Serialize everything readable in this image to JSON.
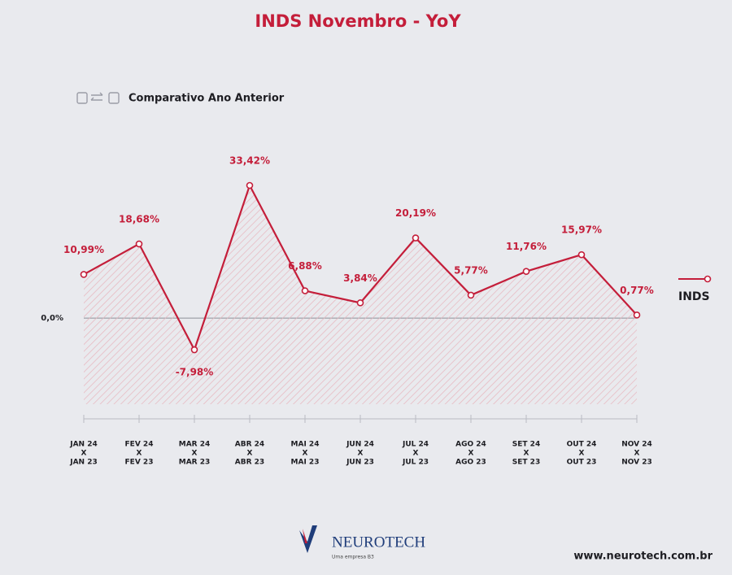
{
  "chart_data": {
    "type": "line",
    "title": "INDS Novembro - YoY",
    "subtitle": "Comparativo Ano Anterior",
    "categories": [
      [
        "JAN 24",
        "X",
        "JAN 23"
      ],
      [
        "FEV 24",
        "X",
        "FEV 23"
      ],
      [
        "MAR 24",
        "X",
        "MAR 23"
      ],
      [
        "ABR 24",
        "X",
        "ABR 23"
      ],
      [
        "MAI 24",
        "X",
        "MAI 23"
      ],
      [
        "JUN 24",
        "X",
        "JUN 23"
      ],
      [
        "JUL 24",
        "X",
        "JUL 23"
      ],
      [
        "AGO 24",
        "X",
        "AGO 23"
      ],
      [
        "SET 24",
        "X",
        "SET 23"
      ],
      [
        "OUT 24",
        "X",
        "OUT 23"
      ],
      [
        "NOV 24",
        "X",
        "NOV 23"
      ]
    ],
    "series": [
      {
        "name": "INDS",
        "color": "#c41e3a",
        "values": [
          10.99,
          18.68,
          -7.98,
          33.42,
          6.88,
          3.84,
          20.19,
          5.77,
          11.76,
          15.97,
          0.77
        ],
        "value_labels": [
          "10,99%",
          "18,68%",
          "-7,98%",
          "33,42%",
          "6,88%",
          "3,84%",
          "20,19%",
          "5,77%",
          "11,76%",
          "15,97%",
          "0,77%"
        ]
      }
    ],
    "ylim": [
      -21.7,
      49.4
    ],
    "yticks": [
      {
        "value": 0,
        "label": "0,0%"
      }
    ],
    "legend": "right",
    "brand": "NEUROTECH",
    "brand_tagline": "Uma empresa B3",
    "website": "www.neurotech.com.br"
  }
}
